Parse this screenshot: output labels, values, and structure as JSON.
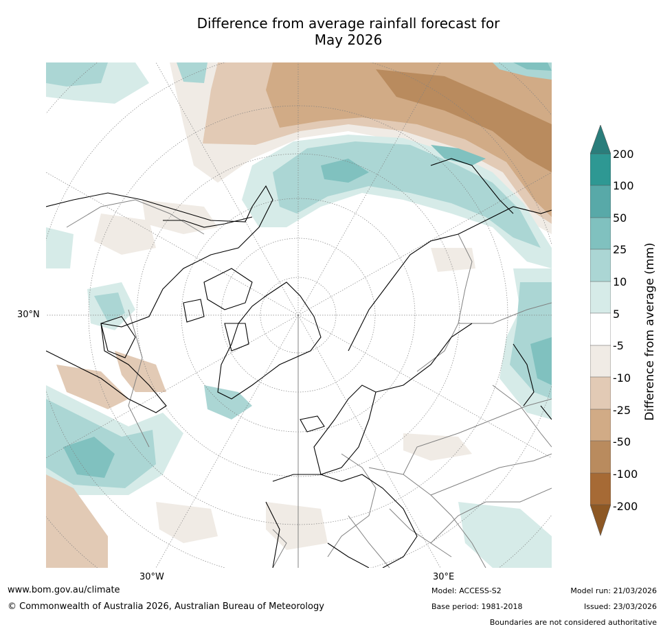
{
  "title": {
    "line1": "Difference from average rainfall forecast for",
    "line2": "May 2026"
  },
  "map": {
    "projection": "north-polar-stereographic",
    "graticule_labels": [
      "30°N",
      "30°W",
      "30°E"
    ],
    "colors": {
      "dry_strong": "#a66a35",
      "dry_med": "#b98b5e",
      "dry_mild": "#d1ab86",
      "dry_light": "#e2cab5",
      "dry_faint": "#f0ebe5",
      "neutral": "#ffffff",
      "wet_faint": "#d6ebe8",
      "wet_light": "#abd6d4",
      "wet_mild": "#80c1bf",
      "wet_med": "#58a9a8",
      "wet_strong": "#2e9893",
      "coastline": "#000000",
      "borders": "#808080",
      "graticule": "#808080"
    },
    "anomaly_regions": [
      "North Pacific dry band",
      "Northern Europe wet band",
      "Northern Asia wet band",
      "North Atlantic wet band",
      "Eastern Pacific dry area"
    ]
  },
  "colorbar": {
    "label": "Difference from average (mm)",
    "ticks": [
      "200",
      "100",
      "50",
      "25",
      "10",
      "5",
      "-5",
      "-10",
      "-25",
      "-50",
      "-100",
      "-200"
    ],
    "colors": [
      "#2a7d7b",
      "#2e9893",
      "#58a9a8",
      "#80c1bf",
      "#abd6d4",
      "#d6ebe8",
      "#ffffff",
      "#f0ebe5",
      "#e2cab5",
      "#d1ab86",
      "#b98b5e",
      "#a66a35",
      "#8d5824"
    ]
  },
  "footer": {
    "website": "www.bom.gov.au/climate",
    "copyright": "© Commonwealth of Australia 2026, Australian Bureau of Meteorology",
    "model": "Model: ACCESS-S2",
    "base_period": "Base period: 1981-2018",
    "model_run": "Model run: 21/03/2026",
    "issued": "Issued: 23/03/2026",
    "disclaimer": "Boundaries are not considered authoritative"
  }
}
